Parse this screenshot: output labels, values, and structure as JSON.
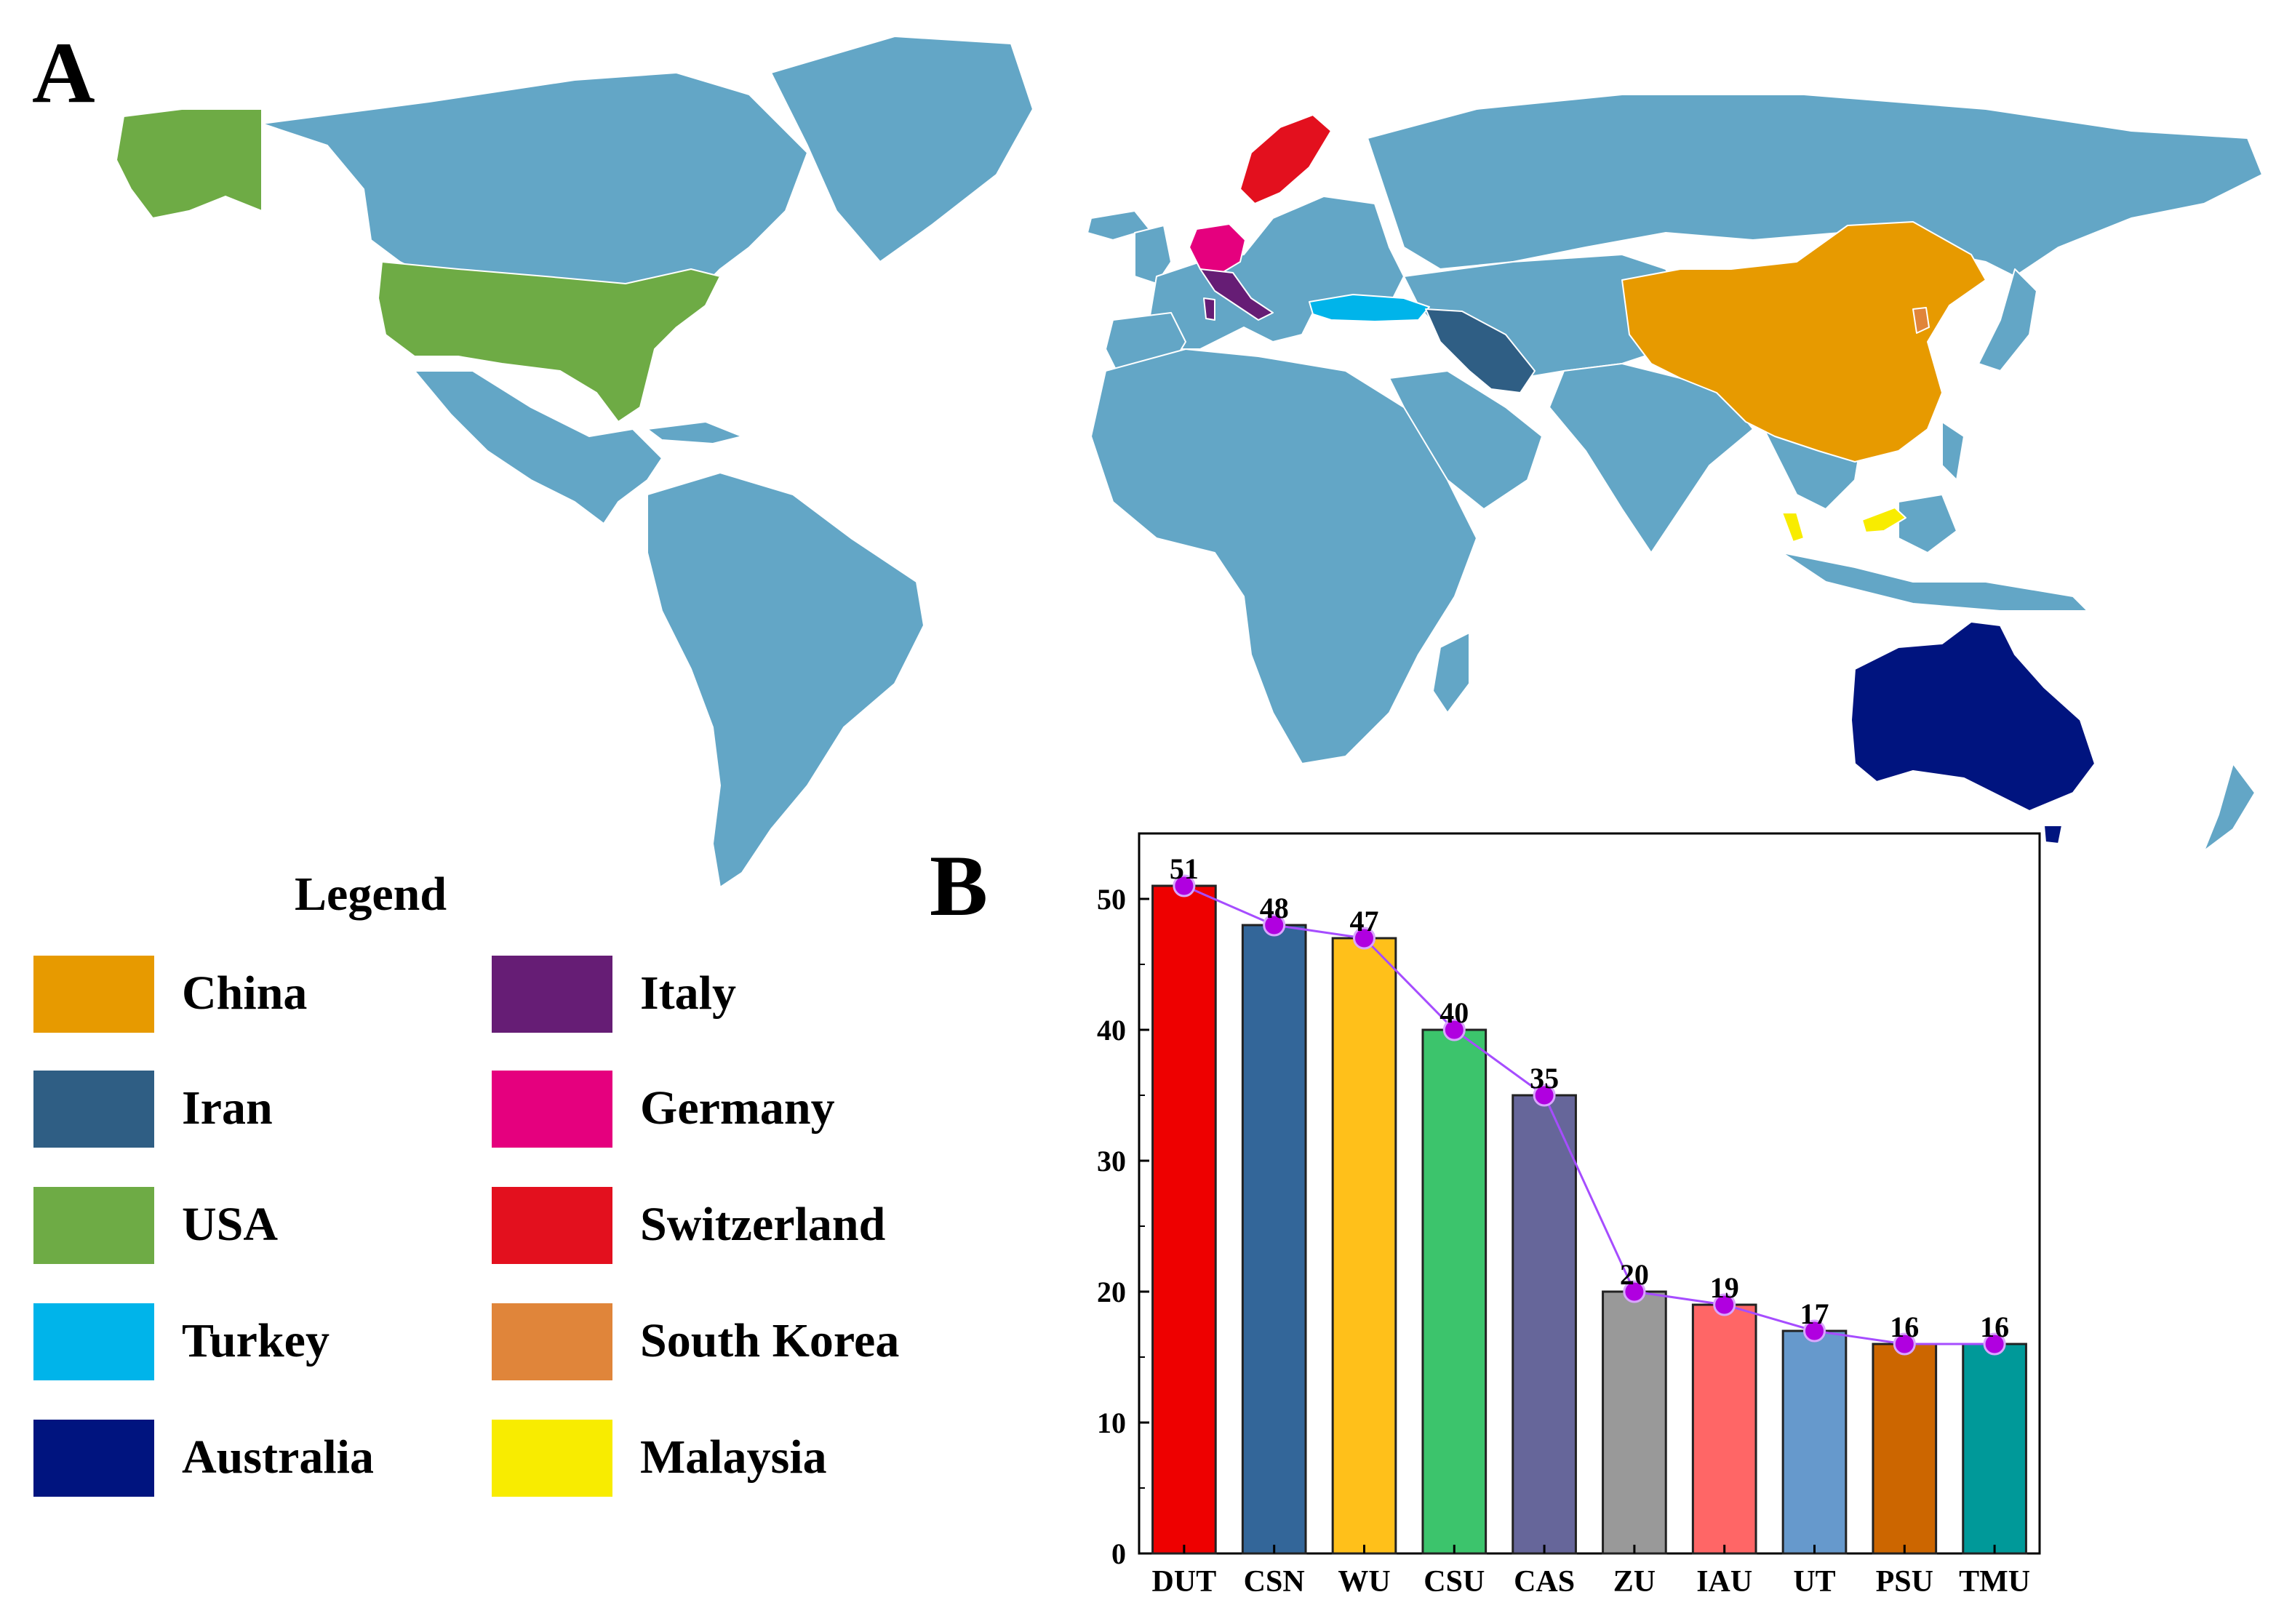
{
  "panels": {
    "a": "A",
    "b": "B"
  },
  "map": {
    "colors": {
      "base": "#63a6c6",
      "border": "#ffffff"
    },
    "highlighted": [
      {
        "country": "China",
        "color": "#e79a00"
      },
      {
        "country": "Iran",
        "color": "#2f5e84"
      },
      {
        "country": "USA",
        "color": "#6eab45"
      },
      {
        "country": "Turkey",
        "color": "#00b4ea"
      },
      {
        "country": "Australia",
        "color": "#00147f"
      },
      {
        "country": "Italy",
        "color": "#661d75"
      },
      {
        "country": "Germany",
        "color": "#e5007e"
      },
      {
        "country": "Switzerland",
        "color": "#e3101e"
      },
      {
        "country": "South Korea",
        "color": "#e0853a"
      },
      {
        "country": "Malaysia",
        "color": "#f8ec00"
      }
    ]
  },
  "legend": {
    "title": "Legend",
    "items": [
      {
        "label": "China",
        "color": "#e79a00"
      },
      {
        "label": "Iran",
        "color": "#2f5e84"
      },
      {
        "label": "USA",
        "color": "#6eab45"
      },
      {
        "label": "Turkey",
        "color": "#00b4ea"
      },
      {
        "label": "Australia",
        "color": "#00147f"
      },
      {
        "label": "Italy",
        "color": "#661d75"
      },
      {
        "label": "Germany",
        "color": "#e5007e"
      },
      {
        "label": "Switzerland",
        "color": "#e3101e"
      },
      {
        "label": "South Korea",
        "color": "#e0853a"
      },
      {
        "label": "Malaysia",
        "color": "#f8ec00"
      }
    ]
  },
  "chart_data": {
    "type": "bar",
    "categories": [
      "DUT",
      "CSN",
      "WU",
      "CSU",
      "CAS",
      "ZU",
      "IAU",
      "UT",
      "PSU",
      "TMU"
    ],
    "values": [
      51,
      48,
      47,
      40,
      35,
      20,
      19,
      17,
      16,
      16
    ],
    "bar_colors": [
      "#ee0000",
      "#336699",
      "#ffc01a",
      "#3cc46c",
      "#66669a",
      "#999999",
      "#ff6666",
      "#6699cc",
      "#cc6600",
      "#009999"
    ],
    "overlay_line": {
      "type": "line",
      "color": "#a64dff",
      "marker_color": "#b000e0"
    },
    "data_labels": [
      "51",
      "48",
      "47",
      "40",
      "35",
      "20",
      "19",
      "17",
      "16",
      "16"
    ],
    "ylim": [
      0,
      55
    ],
    "yticks": [
      0,
      10,
      20,
      30,
      40,
      50
    ],
    "ytick_labels": [
      "0",
      "10",
      "20",
      "30",
      "40",
      "50"
    ],
    "grid": false,
    "title": "",
    "xlabel": "",
    "ylabel": ""
  }
}
